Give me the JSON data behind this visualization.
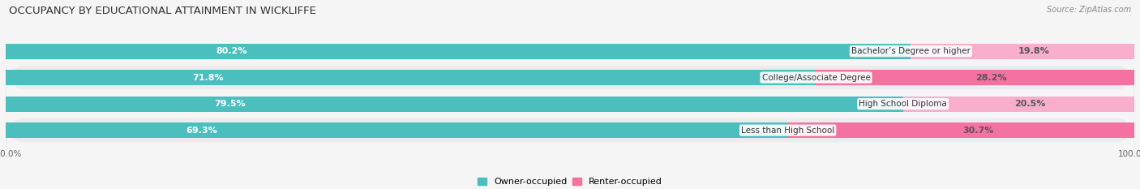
{
  "title": "OCCUPANCY BY EDUCATIONAL ATTAINMENT IN WICKLIFFE",
  "source": "Source: ZipAtlas.com",
  "categories": [
    "Less than High School",
    "High School Diploma",
    "College/Associate Degree",
    "Bachelor’s Degree or higher"
  ],
  "owner_pct": [
    69.3,
    79.5,
    71.8,
    80.2
  ],
  "renter_pct": [
    30.7,
    20.5,
    28.2,
    19.8
  ],
  "owner_color": "#4BBFBE",
  "renter_color_strong": "#F472A0",
  "renter_color_light": "#F9AECB",
  "bg_color": "#f5f5f5",
  "row_bg_even": "#ececec",
  "row_bg_odd": "#f5f5f5",
  "title_fontsize": 9.5,
  "label_fontsize": 8,
  "tick_fontsize": 7.5,
  "source_fontsize": 7,
  "bar_height": 0.58,
  "legend_labels": [
    "Owner-occupied",
    "Renter-occupied"
  ]
}
